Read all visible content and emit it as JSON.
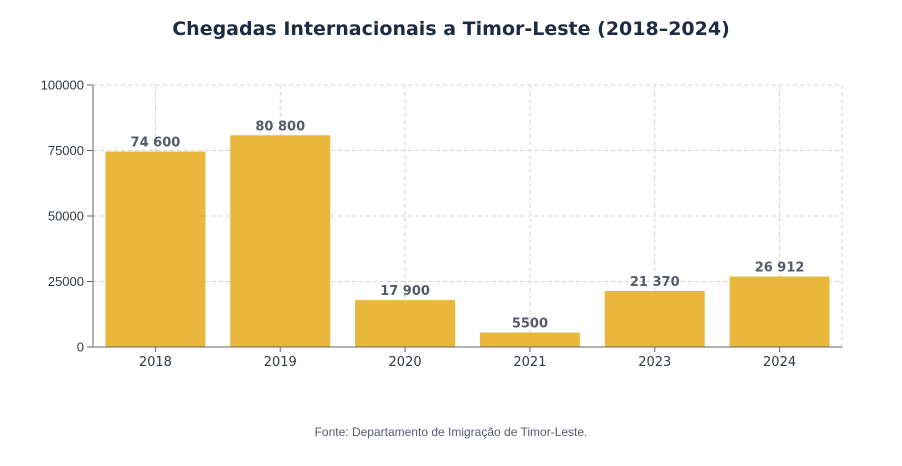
{
  "chart_data": {
    "type": "bar",
    "title": "Chegadas Internacionais a Timor-Leste (2018–2024)",
    "xlabel": "",
    "ylabel": "",
    "categories": [
      "2018",
      "2019",
      "2020",
      "2021",
      "2023",
      "2024"
    ],
    "values": [
      74600,
      80800,
      17900,
      5500,
      21370,
      26912
    ],
    "data_labels": [
      "74 600",
      "80 800",
      "17 900",
      "5500",
      "21 370",
      "26 912"
    ],
    "ylim": [
      0,
      100000
    ],
    "yticks": [
      0,
      25000,
      50000,
      75000,
      100000
    ],
    "ytick_labels": [
      "0",
      "25000",
      "50000",
      "75000",
      "100000"
    ],
    "grid": true,
    "legend": "none",
    "bar_color": "#e8b73c",
    "source": "Fonte: Departamento de Imigração de Timor-Leste."
  }
}
